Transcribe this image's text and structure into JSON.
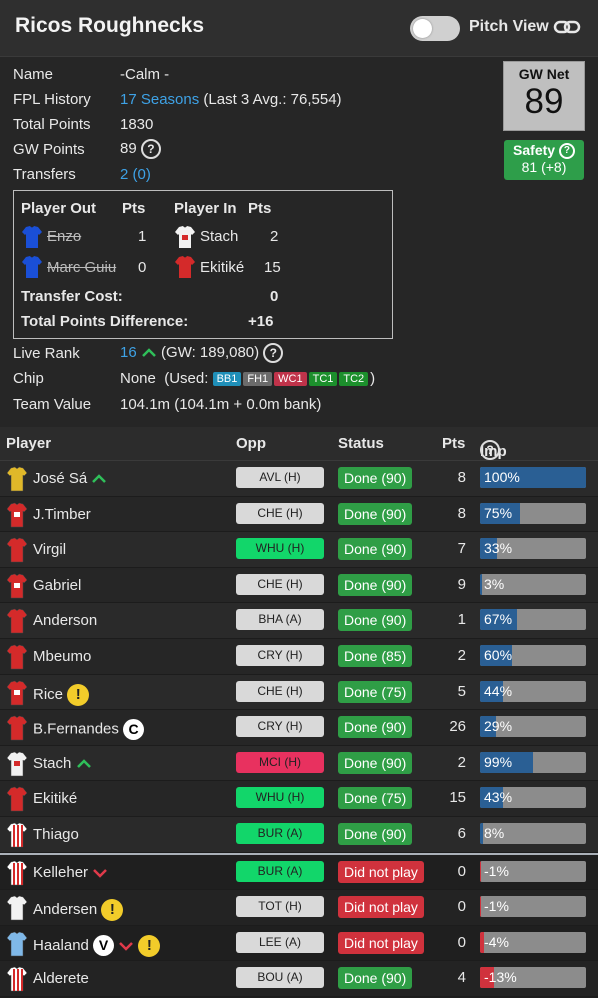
{
  "header": {
    "title": "Ricos Roughnecks",
    "pitch_view_label": "Pitch View"
  },
  "info": {
    "name_label": "Name",
    "name_value": "-Calm -",
    "history_label": "FPL History",
    "history_link": "17 Seasons",
    "history_extra": "(Last 3 Avg.: 76,554)",
    "total_label": "Total Points",
    "total_value": "1830",
    "gw_label": "GW Points",
    "gw_value": "89",
    "transfers_label": "Transfers",
    "transfers_value": "2 (0)",
    "live_rank_label": "Live Rank",
    "live_rank_value": "16",
    "live_rank_extra": "(GW: 189,080)",
    "chip_label": "Chip",
    "chip_value": "None",
    "chip_used_prefix": "(Used:",
    "chip_used_suffix": ")",
    "chips_used": [
      {
        "label": "BB1",
        "color": "#1f8fb8"
      },
      {
        "label": "FH1",
        "color": "#6b6b6b"
      },
      {
        "label": "WC1",
        "color": "#c0334a"
      },
      {
        "label": "TC1",
        "color": "#1c8f2c"
      },
      {
        "label": "TC2",
        "color": "#1c8f2c"
      }
    ],
    "team_value_label": "Team Value",
    "team_value": "104.1m (104.1m + 0.0m bank)"
  },
  "gw_net": {
    "label": "GW Net",
    "value": "89"
  },
  "safety": {
    "label": "Safety",
    "value": "81 (+8)"
  },
  "transfers_box": {
    "out_header": "Player Out",
    "pts_header": "Pts",
    "in_header": "Player In",
    "pts_in_header": "Pts",
    "rows": [
      {
        "out": "Enzo",
        "out_pts": "1",
        "in": "Stach",
        "in_pts": "2"
      },
      {
        "out": "Marc Guiu",
        "out_pts": "0",
        "in": "Ekitiké",
        "in_pts": "15"
      }
    ],
    "cost_label": "Transfer Cost:",
    "cost_value": "0",
    "diff_label": "Total Points Difference:",
    "diff_value": "+16"
  },
  "table": {
    "headers": {
      "player": "Player",
      "opp": "Opp",
      "status": "Status",
      "pts": "Pts",
      "imp": "Imp"
    },
    "rows": [
      {
        "name": "José Sá",
        "opp": "AVL (H)",
        "opp_color": "#d9d9d9",
        "status": "Done (90)",
        "status_color": "#2f9e46",
        "pts": "8",
        "imp": 100,
        "imp_label": "100%",
        "shirt": "#e0b829",
        "shirt2": "#e0b829",
        "up": true
      },
      {
        "name": "J.Timber",
        "opp": "CHE (H)",
        "opp_color": "#d9d9d9",
        "status": "Done (90)",
        "status_color": "#2f9e46",
        "pts": "8",
        "imp": 38,
        "imp_label": "75%",
        "shirt": "#d42a2a",
        "shirt2": "#ffffff"
      },
      {
        "name": "Virgil",
        "opp": "WHU (H)",
        "opp_color": "#12d66a",
        "status": "Done (90)",
        "status_color": "#2f9e46",
        "pts": "7",
        "imp": 16,
        "imp_label": "33%",
        "shirt": "#d42a2a",
        "shirt2": "#d42a2a"
      },
      {
        "name": "Gabriel",
        "opp": "CHE (H)",
        "opp_color": "#d9d9d9",
        "status": "Done (90)",
        "status_color": "#2f9e46",
        "pts": "9",
        "imp": 2,
        "imp_label": "3%",
        "shirt": "#d42a2a",
        "shirt2": "#ffffff"
      },
      {
        "name": "Anderson",
        "opp": "BHA (A)",
        "opp_color": "#d9d9d9",
        "status": "Done (90)",
        "status_color": "#2f9e46",
        "pts": "1",
        "imp": 35,
        "imp_label": "67%",
        "shirt": "#d42a2a",
        "shirt2": "#d42a2a"
      },
      {
        "name": "Mbeumo",
        "opp": "CRY (H)",
        "opp_color": "#d9d9d9",
        "status": "Done (85)",
        "status_color": "#2f9e46",
        "pts": "2",
        "imp": 30,
        "imp_label": "60%",
        "shirt": "#d42a2a",
        "shirt2": "#d42a2a"
      },
      {
        "name": "Rice",
        "opp": "CHE (H)",
        "opp_color": "#d9d9d9",
        "status": "Done (75)",
        "status_color": "#2f9e46",
        "pts": "5",
        "imp": 22,
        "imp_label": "44%",
        "shirt": "#d42a2a",
        "shirt2": "#ffffff",
        "warn": true
      },
      {
        "name": "B.Fernandes",
        "opp": "CRY (H)",
        "opp_color": "#d9d9d9",
        "status": "Done (90)",
        "status_color": "#2f9e46",
        "pts": "26",
        "imp": 15,
        "imp_label": "29%",
        "shirt": "#d42a2a",
        "shirt2": "#d42a2a",
        "captain": "C"
      },
      {
        "name": "Stach",
        "opp": "MCI (H)",
        "opp_color": "#e8315f",
        "status": "Done (90)",
        "status_color": "#2f9e46",
        "pts": "2",
        "imp": 50,
        "imp_label": "99%",
        "shirt": "#f2f2f2",
        "shirt2": "#d42a2a",
        "up": true
      },
      {
        "name": "Ekitiké",
        "opp": "WHU (H)",
        "opp_color": "#12d66a",
        "status": "Done (75)",
        "status_color": "#2f9e46",
        "pts": "15",
        "imp": 22,
        "imp_label": "43%",
        "shirt": "#d42a2a",
        "shirt2": "#d42a2a"
      },
      {
        "name": "Thiago",
        "opp": "BUR (A)",
        "opp_color": "#12d66a",
        "status": "Done (90)",
        "status_color": "#2f9e46",
        "pts": "6",
        "imp": 3,
        "imp_label": "8%",
        "shirt": "#ffffff",
        "shirt2": "#d42a2a",
        "stripes": true
      },
      {
        "name": "Kelleher",
        "opp": "BUR (A)",
        "opp_color": "#12d66a",
        "status": "Did not play",
        "status_color": "#d0323d",
        "pts": "0",
        "imp": -1,
        "imp_label": "-1%",
        "shirt": "#ffffff",
        "shirt2": "#d42a2a",
        "stripes": true,
        "bench": true,
        "down": true
      },
      {
        "name": "Andersen",
        "opp": "TOT (H)",
        "opp_color": "#d9d9d9",
        "status": "Did not play",
        "status_color": "#d0323d",
        "pts": "0",
        "imp": -1,
        "imp_label": "-1%",
        "shirt": "#f2f2f2",
        "shirt2": "#f2f2f2",
        "bench": true,
        "warn": true
      },
      {
        "name": "Haaland",
        "opp": "LEE (A)",
        "opp_color": "#d9d9d9",
        "status": "Did not play",
        "status_color": "#d0323d",
        "pts": "0",
        "imp": -4,
        "imp_label": "-4%",
        "shirt": "#7fb8e8",
        "shirt2": "#7fb8e8",
        "bench": true,
        "captain": "V",
        "down": true,
        "warn": true
      },
      {
        "name": "Alderete",
        "opp": "BOU (A)",
        "opp_color": "#d9d9d9",
        "status": "Done (90)",
        "status_color": "#2f9e46",
        "pts": "4",
        "imp": -13,
        "imp_label": "-13%",
        "shirt": "#ffffff",
        "shirt2": "#d42a2a",
        "stripes": true,
        "bench": true
      }
    ]
  }
}
